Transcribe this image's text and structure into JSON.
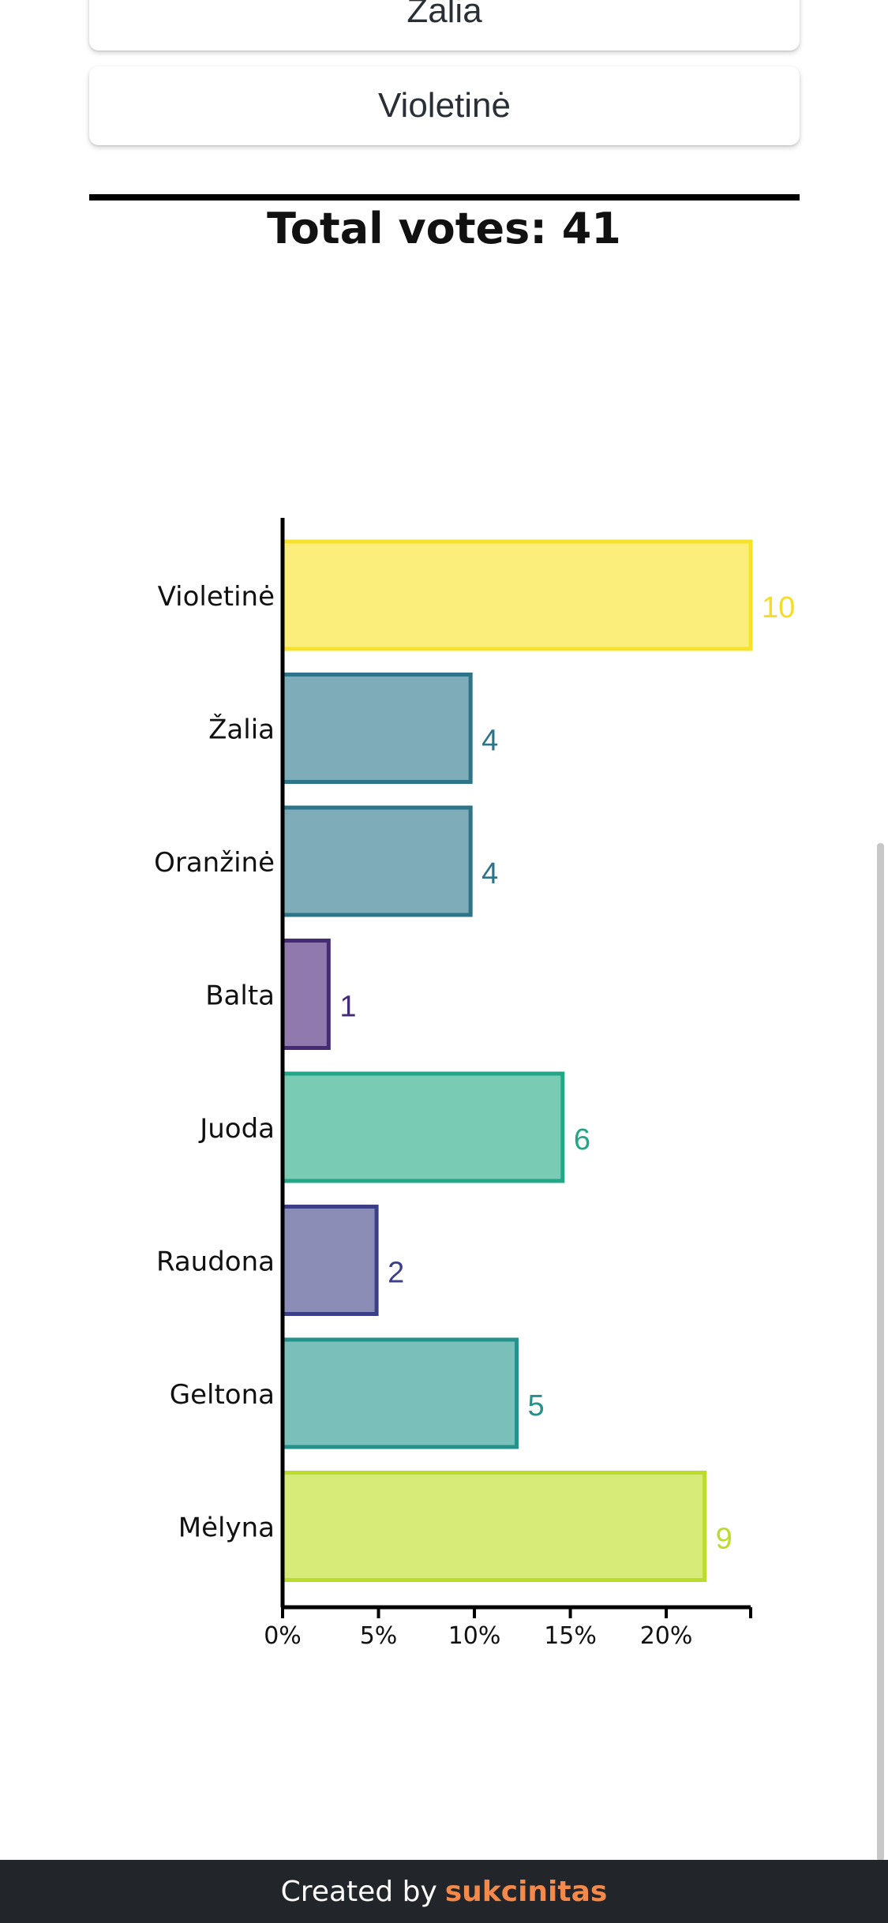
{
  "options": [
    "Žalia",
    "Violetinė"
  ],
  "total_votes_label": "Total votes: 41",
  "footer": {
    "created_by": "Created by",
    "brand": "sukcinitas"
  },
  "chart_data": {
    "type": "bar",
    "orientation": "horizontal",
    "title": "",
    "xlabel": "",
    "ylabel": "",
    "categories": [
      "Violetinė",
      "Žalia",
      "Oranžinė",
      "Balta",
      "Juoda",
      "Raudona",
      "Geltona",
      "Mėlyna"
    ],
    "values": [
      10,
      4,
      4,
      1,
      6,
      2,
      5,
      9
    ],
    "percent_of_total": [
      24.4,
      9.8,
      9.8,
      2.4,
      14.6,
      4.9,
      12.2,
      22.0
    ],
    "xlim": [
      0,
      24.4
    ],
    "x_ticks": [
      "0%",
      "5%",
      "10%",
      "15%",
      "20%"
    ],
    "x_tick_values": [
      0,
      5,
      10,
      15,
      20
    ],
    "grid": false,
    "colors": [
      {
        "fill": "#fcee7a",
        "stroke": "#f6e22a",
        "label": "#f4dd24"
      },
      {
        "fill": "#7eadb9",
        "stroke": "#2d7489",
        "label": "#2d7489"
      },
      {
        "fill": "#7eadb9",
        "stroke": "#2d7489",
        "label": "#2d7489"
      },
      {
        "fill": "#9079ad",
        "stroke": "#432c74",
        "label": "#432c74"
      },
      {
        "fill": "#79cbb3",
        "stroke": "#22a686",
        "label": "#22a686"
      },
      {
        "fill": "#8c8db7",
        "stroke": "#3c3f87",
        "label": "#3c3f87"
      },
      {
        "fill": "#7abfba",
        "stroke": "#25918b",
        "label": "#25918b"
      },
      {
        "fill": "#d6eb78",
        "stroke": "#bcdc2b",
        "label": "#bcdc2b"
      }
    ]
  }
}
